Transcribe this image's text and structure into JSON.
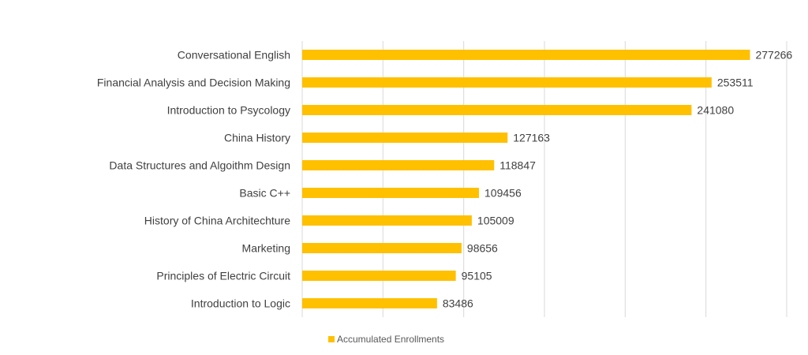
{
  "chart_data": {
    "type": "bar",
    "orientation": "horizontal",
    "categories": [
      "Conversational English",
      "Financial Analysis and Decision Making",
      "Introduction to Psycology",
      "China History",
      "Data Structures and Algoithm Design",
      "Basic C++",
      "History of China Architechture",
      "Marketing",
      "Principles of Electric Circuit",
      "Introduction to Logic"
    ],
    "series": [
      {
        "name": "Accumulated Enrollments",
        "values": [
          277266,
          253511,
          241080,
          127163,
          118847,
          109456,
          105009,
          98656,
          95105,
          83486
        ],
        "color": "#FFC000"
      }
    ],
    "xlim": [
      0,
      300000
    ],
    "grid": true,
    "legend": "bottom"
  }
}
